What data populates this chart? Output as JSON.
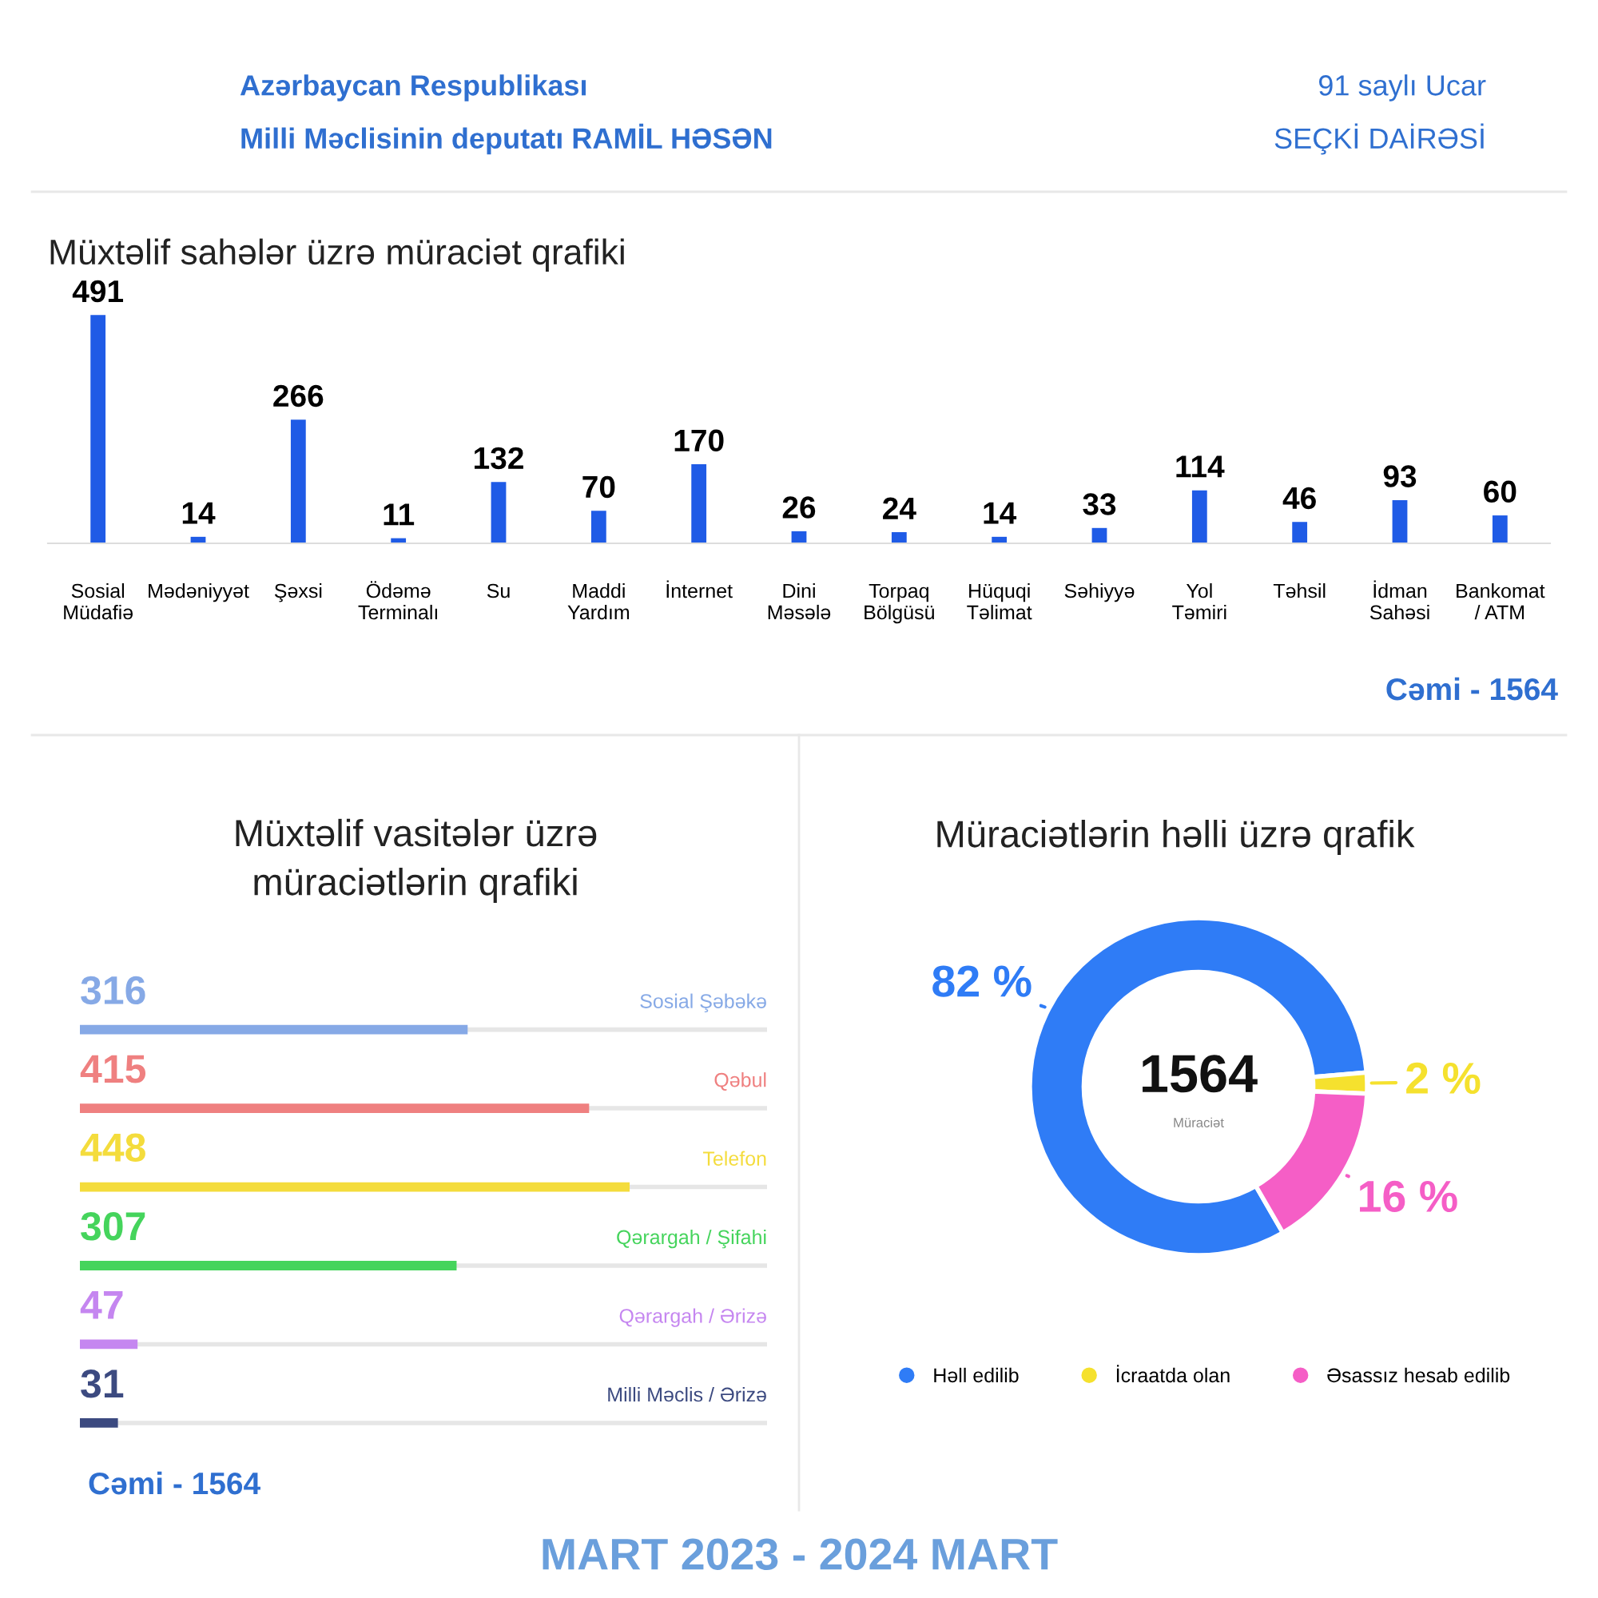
{
  "chart_data": [
    {
      "type": "bar",
      "title": "Müxtəlif sahələr üzrə müraciət qrafiki",
      "categories": [
        "Sosial\nMüdafiə",
        "Mədəniyyət",
        "Şəxsi",
        "Ödəmə\nTerminalı",
        "Su",
        "Maddi\nYardım",
        "İnternet",
        "Dini\nMəsələ",
        "Torpaq\nBölgüsü",
        "Hüquqi\nTəlimat",
        "Səhiyyə",
        "Yol\nTəmiri",
        "Təhsil",
        "İdman\nSahəsi",
        "Bankomat\n/ ATM"
      ],
      "values": [
        491,
        14,
        266,
        11,
        132,
        70,
        170,
        26,
        24,
        14,
        33,
        114,
        46,
        93,
        60
      ],
      "color": "#1f5be6",
      "data_labels": true,
      "grid": false,
      "annotations": [
        "Azərbaycan Respublikası",
        "Milli Məclisinin deputatı RAMİL HƏSƏN",
        "91 saylı Ucar",
        "SEÇKİ DAİRƏSİ",
        "Cəmi - 1564",
        "MART 2023 - 2024 MART"
      ]
    },
    {
      "type": "bar",
      "orientation": "horizontal",
      "title": "Müxtəlif vasitələr üzrə\nmüraciətlərin qrafiki",
      "categories": [
        "Sosial Şəbəkə",
        "Qəbul",
        "Telefon",
        "Qərargah / Şifahi",
        "Qərargah / Ərizə",
        "Milli Məclis / Ərizə"
      ],
      "values": [
        316,
        415,
        448,
        307,
        47,
        31
      ],
      "colors": [
        "#86a9e6",
        "#ef8080",
        "#f4dc3c",
        "#45d45c",
        "#c586f0",
        "#3c4a80"
      ],
      "data_labels": true,
      "grid": false,
      "annotations": [
        "Cəmi - 1564"
      ]
    },
    {
      "type": "donut",
      "title": "Müraciətlərin həlli üzrə qrafik",
      "categories": [
        "Həll edilib",
        "İcraatda olan",
        "Əsassız hesab edilib"
      ],
      "values": [
        82,
        2,
        16
      ],
      "colors": [
        "#2f7cf6",
        "#f5e12e",
        "#f55ec6"
      ],
      "value_labels": [
        "82 %",
        "2 %",
        "16 %"
      ],
      "legend": "bottom",
      "annotations": [
        "1564",
        "Müraciət"
      ]
    }
  ]
}
